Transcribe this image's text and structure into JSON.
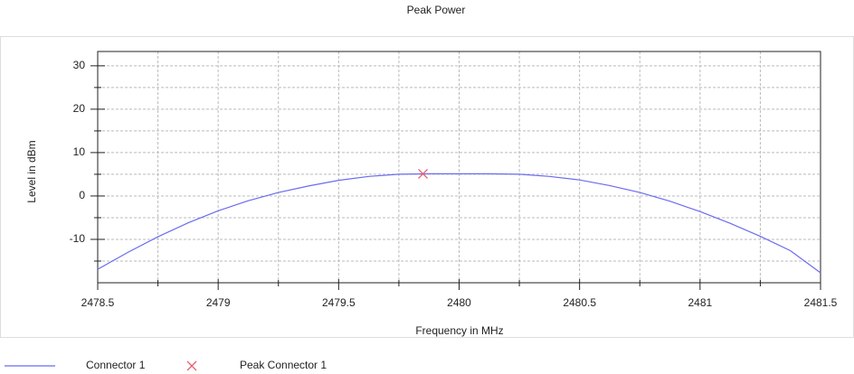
{
  "chart_data": {
    "type": "line",
    "title": "Peak Power",
    "xlabel": "Frequency in MHz",
    "ylabel": "Level in dBm",
    "xlim": [
      2478.5,
      2481.5
    ],
    "ylim": [
      -20,
      33.3
    ],
    "xticks": [
      2478.5,
      2479,
      2479.5,
      2480,
      2480.5,
      2481,
      2481.5
    ],
    "xminor_ticks": [
      2478.75,
      2479.25,
      2479.75,
      2480.25,
      2480.75,
      2481.25
    ],
    "yticks": [
      -10,
      0,
      10,
      20,
      30
    ],
    "yminor_ticks": [
      -15,
      -5,
      5,
      15,
      25
    ],
    "grid": true,
    "legend": "bottom",
    "series": [
      {
        "name": "Connector 1",
        "color": "#6b6bf0",
        "marker": "line",
        "x": [
          2478.5,
          2478.625,
          2478.75,
          2478.875,
          2479,
          2479.125,
          2479.25,
          2479.375,
          2479.5,
          2479.625,
          2479.75,
          2479.875,
          2480,
          2480.125,
          2480.25,
          2480.375,
          2480.5,
          2480.625,
          2480.75,
          2480.875,
          2481,
          2481.125,
          2481.25,
          2481.375,
          2481.5
        ],
        "values": [
          -16.9,
          -13,
          -9.4,
          -6.2,
          -3.4,
          -1.1,
          0.8,
          2.3,
          3.6,
          4.5,
          5,
          5.1,
          5.1,
          5.1,
          5,
          4.5,
          3.7,
          2.4,
          0.8,
          -1.2,
          -3.6,
          -6.3,
          -9.3,
          -12.6,
          -17.7
        ]
      },
      {
        "name": "Peak Connector 1",
        "color": "#e8606e",
        "marker": "x",
        "x": [
          2479.85
        ],
        "values": [
          5.1
        ]
      }
    ]
  }
}
